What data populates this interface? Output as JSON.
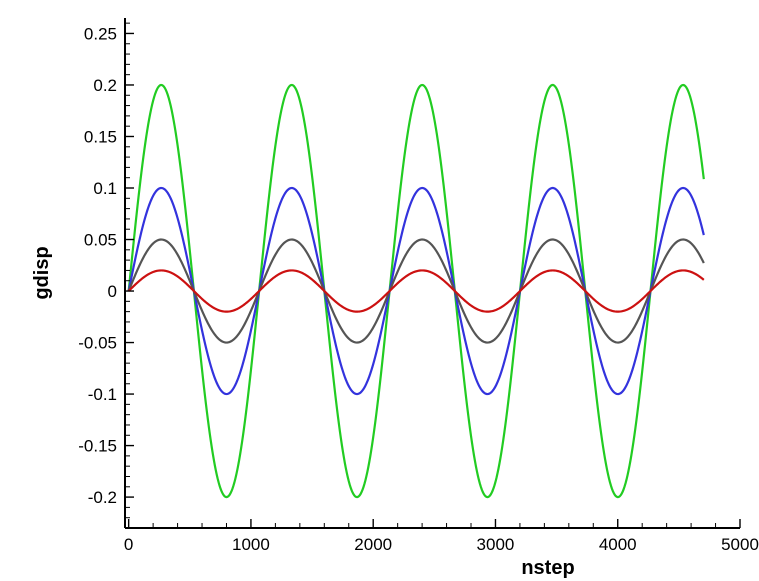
{
  "chart_data": {
    "type": "line",
    "title": "",
    "xlabel": "nstep",
    "ylabel": "gdisp",
    "xlim": [
      -30,
      5000
    ],
    "ylim": [
      -0.23,
      0.265
    ],
    "x_ticks": [
      0,
      1000,
      2000,
      3000,
      4000,
      5000
    ],
    "x_tick_labels": [
      "0",
      "1000",
      "2000",
      "3000",
      "4000",
      "5000"
    ],
    "y_ticks": [
      0.25,
      0.2,
      0.15,
      0.1,
      0.05,
      0,
      -0.05,
      -0.1,
      -0.15,
      -0.2
    ],
    "y_tick_labels": [
      "0.25",
      "0.2",
      "0.15",
      "0.1",
      "0.05",
      "0",
      "-0.05",
      "-0.1",
      "-0.15",
      "-0.2"
    ],
    "grid": false,
    "legend": "none",
    "x_range_data": [
      0,
      4710
    ],
    "period": 1067,
    "series": [
      {
        "color": "#22cc22",
        "amplitude": 0.2
      },
      {
        "color": "#3333dd",
        "amplitude": 0.1
      },
      {
        "color": "#555555",
        "amplitude": 0.05
      },
      {
        "color": "#cc1111",
        "amplitude": 0.02
      }
    ]
  }
}
